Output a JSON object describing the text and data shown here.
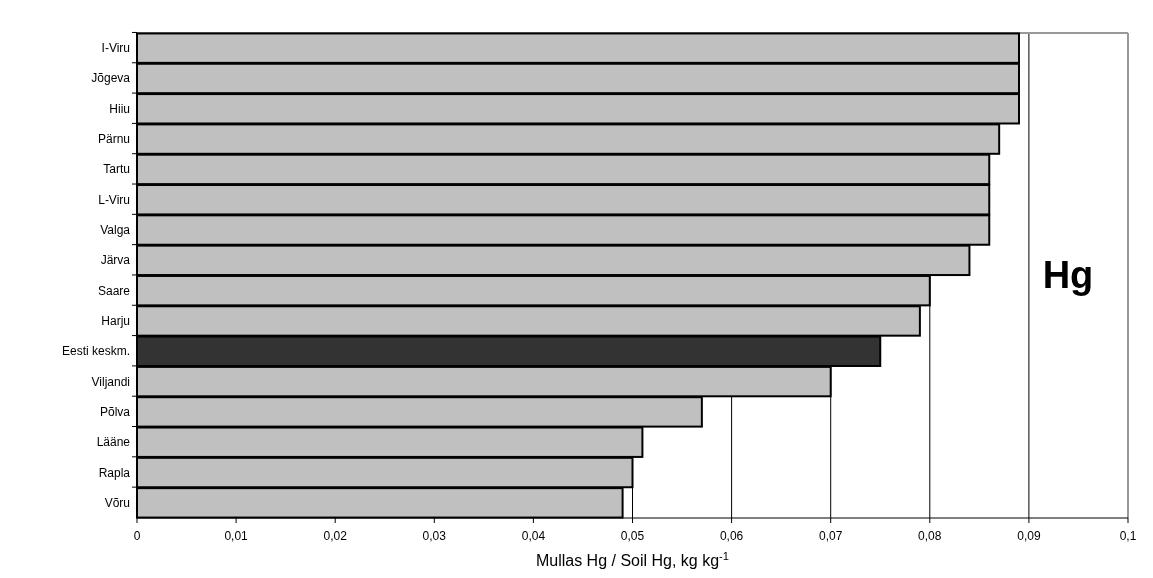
{
  "chart_data": {
    "type": "bar",
    "orientation": "horizontal",
    "categories": [
      "I-Viru",
      "Jõgeva",
      "Hiiu",
      "Pärnu",
      "Tartu",
      "L-Viru",
      "Valga",
      "Järva",
      "Saare",
      "Harju",
      "Eesti keskm.",
      "Viljandi",
      "Põlva",
      "Lääne",
      "Rapla",
      "Võru"
    ],
    "values": [
      0.089,
      0.089,
      0.089,
      0.087,
      0.086,
      0.086,
      0.086,
      0.084,
      0.08,
      0.079,
      0.075,
      0.07,
      0.057,
      0.051,
      0.05,
      0.049
    ],
    "colors": [
      "#c0c0c0",
      "#c0c0c0",
      "#c0c0c0",
      "#c0c0c0",
      "#c0c0c0",
      "#c0c0c0",
      "#c0c0c0",
      "#c0c0c0",
      "#c0c0c0",
      "#c0c0c0",
      "#333333",
      "#c0c0c0",
      "#c0c0c0",
      "#c0c0c0",
      "#c0c0c0",
      "#c0c0c0"
    ],
    "xlim": [
      0,
      0.1
    ],
    "xticks": [
      0,
      {
        "value": 0.01,
        "label": "0,01"
      },
      {
        "value": 0.02,
        "label": "0,02"
      },
      {
        "value": 0.03,
        "label": "0,03"
      },
      {
        "value": 0.04,
        "label": "0,04"
      },
      {
        "value": 0.05,
        "label": "0,05"
      },
      {
        "value": 0.06,
        "label": "0,06"
      },
      {
        "value": 0.07,
        "label": "0,07"
      },
      {
        "value": 0.08,
        "label": "0,08"
      },
      {
        "value": 0.09,
        "label": "0,09"
      },
      {
        "value": 0.1,
        "label": "0,1"
      }
    ],
    "xlabel": "Mullas Hg / Soil Hg, kg kg$^{-1}$",
    "annotations": [
      "Hg"
    ],
    "grid": "x"
  }
}
